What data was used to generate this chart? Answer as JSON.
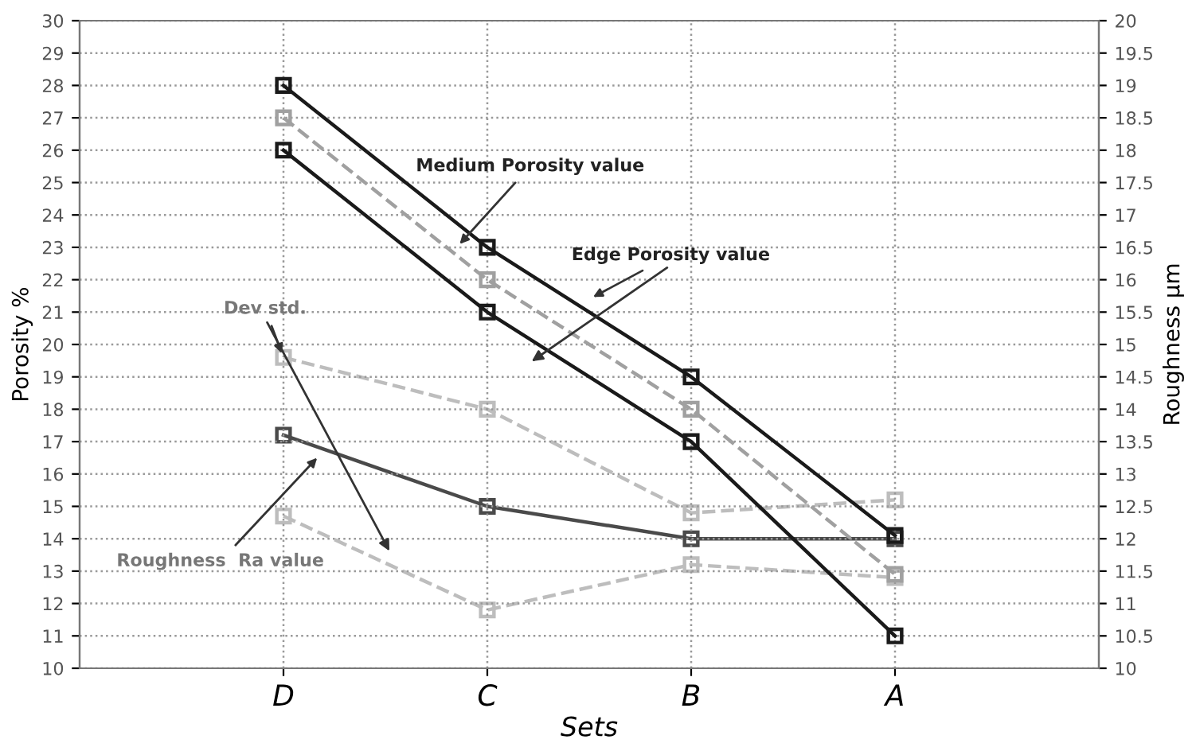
{
  "chart_data": {
    "type": "line",
    "xlabel": "Sets",
    "ylabel": "Porosity %",
    "y2label": "Roughness µm",
    "categories": [
      "D",
      "C",
      "B",
      "A"
    ],
    "series": [
      {
        "color": "#1a1a1a",
        "values": [
          28,
          23,
          19,
          14.1
        ],
        "line_style": "solid"
      },
      {
        "color": "#1a1a1a",
        "values": [
          26,
          21,
          17,
          11
        ],
        "line_style": "solid"
      },
      {
        "color": "#a0a0a0",
        "values": [
          27,
          22,
          18,
          12.9
        ],
        "line_style": "dashed"
      },
      {
        "color": "#4a4a4a",
        "values": [
          13.6,
          12.5,
          12,
          12
        ],
        "line_style": "solid",
        "axis": "y2"
      },
      {
        "color": "#bdbdbd",
        "values": [
          14.8,
          14,
          12.4,
          12.6
        ],
        "line_style": "dashed",
        "axis": "y2"
      },
      {
        "color": "#bdbdbd",
        "values": [
          12.35,
          10.9,
          11.6,
          11.4
        ],
        "line_style": "dashed",
        "axis": "y2"
      }
    ],
    "ylim": [
      10,
      30
    ],
    "yticks": [
      10,
      11,
      12,
      13,
      14,
      15,
      16,
      17,
      18,
      19,
      20,
      21,
      22,
      23,
      24,
      25,
      26,
      27,
      28,
      29,
      30
    ],
    "y2lim": [
      10,
      20
    ],
    "y2ticks": [
      10,
      10.5,
      11,
      11.5,
      12,
      12.5,
      13,
      13.5,
      14,
      14.5,
      15,
      15.5,
      16,
      16.5,
      17,
      17.5,
      18,
      18.5,
      19,
      19.5,
      20
    ],
    "marker": "square",
    "grid": true,
    "annotations": [
      "Medium Porosity value",
      "Edge Porosity value",
      {
        "text": "Dev std.",
        "x": "D",
        "y": 19.6
      },
      "Roughness  Ra value"
    ]
  }
}
